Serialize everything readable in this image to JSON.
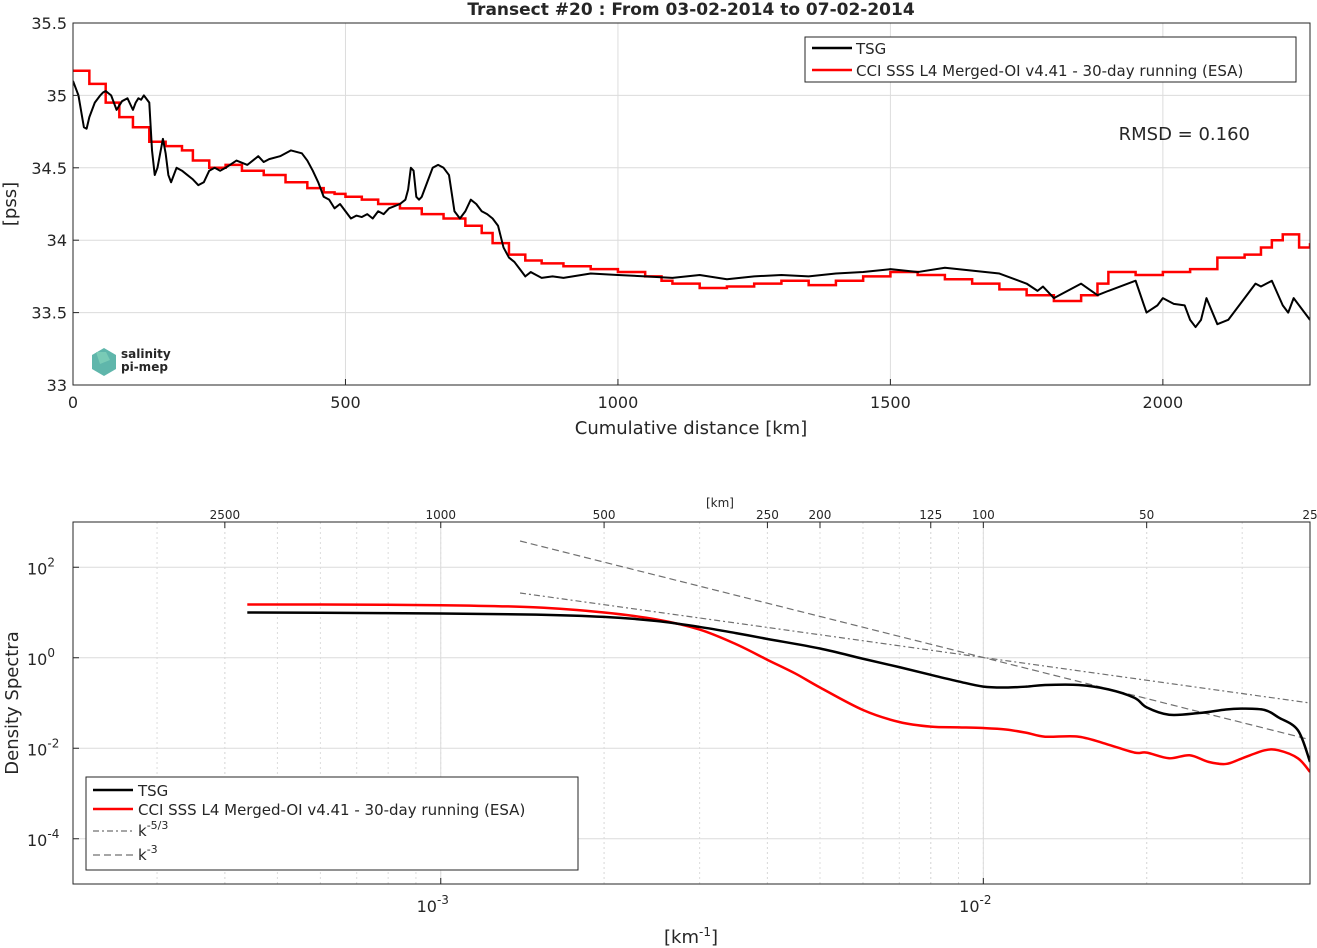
{
  "colors": {
    "tsg": "#000000",
    "cci": "#ff0000",
    "guide": "#707070",
    "grid": "#dcdcdc",
    "logo": "#2a9d8f"
  },
  "logo": {
    "line1": "salinity",
    "line2": "pi-mep"
  },
  "chart_data": [
    {
      "type": "line",
      "title": "Transect #20 : From 03-02-2014 to 07-02-2014",
      "xlabel": "Cumulative distance [km]",
      "ylabel": "[pss]",
      "xlim": [
        0,
        2270
      ],
      "ylim": [
        33,
        35.5
      ],
      "xticks": [
        0,
        500,
        1000,
        1500,
        2000
      ],
      "yticks": [
        33,
        33.5,
        34,
        34.5,
        35,
        35.5
      ],
      "grid": true,
      "legend_placement": "top-right",
      "annotation": "RMSD = 0.160",
      "series": [
        {
          "name": "TSG",
          "x": [
            0,
            10,
            20,
            25,
            30,
            40,
            50,
            55,
            60,
            70,
            80,
            90,
            100,
            110,
            115,
            120,
            125,
            130,
            140,
            145,
            150,
            155,
            160,
            165,
            170,
            175,
            180,
            190,
            200,
            210,
            220,
            230,
            240,
            250,
            260,
            270,
            280,
            300,
            320,
            340,
            350,
            360,
            380,
            400,
            420,
            430,
            440,
            450,
            460,
            470,
            480,
            490,
            500,
            510,
            520,
            530,
            540,
            550,
            560,
            570,
            580,
            600,
            610,
            615,
            620,
            625,
            630,
            635,
            640,
            650,
            660,
            670,
            680,
            690,
            700,
            710,
            720,
            730,
            740,
            750,
            760,
            770,
            780,
            790,
            800,
            810,
            820,
            830,
            840,
            850,
            860,
            880,
            900,
            950,
            1000,
            1050,
            1100,
            1150,
            1200,
            1250,
            1300,
            1350,
            1400,
            1450,
            1500,
            1550,
            1600,
            1650,
            1700,
            1750,
            1770,
            1780,
            1800,
            1850,
            1880,
            1900,
            1950,
            1970,
            1990,
            2000,
            2020,
            2040,
            2050,
            2060,
            2070,
            2080,
            2100,
            2120,
            2150,
            2170,
            2180,
            2190,
            2200,
            2220,
            2230,
            2240,
            2250,
            2260,
            2270
          ],
          "values": [
            35.1,
            35.0,
            34.78,
            34.77,
            34.85,
            34.95,
            35.0,
            35.02,
            35.03,
            35.0,
            34.9,
            34.96,
            34.98,
            34.9,
            34.95,
            34.98,
            34.97,
            35.0,
            34.95,
            34.62,
            34.45,
            34.5,
            34.6,
            34.7,
            34.6,
            34.45,
            34.4,
            34.5,
            34.48,
            34.45,
            34.42,
            34.38,
            34.4,
            34.48,
            34.5,
            34.48,
            34.5,
            34.55,
            34.52,
            34.58,
            34.54,
            34.56,
            34.58,
            34.62,
            34.6,
            34.55,
            34.48,
            34.4,
            34.3,
            34.28,
            34.22,
            34.25,
            34.2,
            34.15,
            34.17,
            34.16,
            34.18,
            34.15,
            34.2,
            34.18,
            34.22,
            34.25,
            34.28,
            34.35,
            34.5,
            34.48,
            34.3,
            34.28,
            34.3,
            34.4,
            34.5,
            34.52,
            34.5,
            34.45,
            34.2,
            34.15,
            34.2,
            34.28,
            34.25,
            34.2,
            34.18,
            34.15,
            34.1,
            33.95,
            33.88,
            33.85,
            33.8,
            33.75,
            33.78,
            33.76,
            33.74,
            33.75,
            33.74,
            33.77,
            33.76,
            33.75,
            33.74,
            33.76,
            33.73,
            33.75,
            33.76,
            33.75,
            33.77,
            33.78,
            33.8,
            33.78,
            33.81,
            33.79,
            33.77,
            33.7,
            33.65,
            33.68,
            33.6,
            33.7,
            33.62,
            33.65,
            33.72,
            33.5,
            33.55,
            33.6,
            33.56,
            33.55,
            33.45,
            33.4,
            33.45,
            33.6,
            33.42,
            33.45,
            33.6,
            33.7,
            33.68,
            33.7,
            33.72,
            33.55,
            33.5,
            33.6,
            33.55,
            33.5,
            33.45
          ]
        },
        {
          "name": "CCI SSS L4 Merged-OI v4.41 - 30-day running (ESA)",
          "step": true,
          "x": [
            0,
            30,
            60,
            85,
            110,
            140,
            170,
            200,
            220,
            250,
            280,
            310,
            350,
            390,
            430,
            460,
            480,
            500,
            530,
            560,
            600,
            640,
            680,
            720,
            750,
            770,
            800,
            830,
            860,
            900,
            950,
            1000,
            1050,
            1080,
            1100,
            1150,
            1200,
            1250,
            1300,
            1350,
            1400,
            1450,
            1500,
            1550,
            1600,
            1650,
            1700,
            1750,
            1800,
            1850,
            1880,
            1900,
            1950,
            2000,
            2050,
            2100,
            2150,
            2180,
            2200,
            2220,
            2250,
            2270
          ],
          "values": [
            35.17,
            35.08,
            34.95,
            34.85,
            34.78,
            34.68,
            34.65,
            34.62,
            34.55,
            34.5,
            34.52,
            34.48,
            34.45,
            34.4,
            34.36,
            34.33,
            34.32,
            34.3,
            34.28,
            34.25,
            34.22,
            34.18,
            34.15,
            34.1,
            34.05,
            33.98,
            33.9,
            33.86,
            33.84,
            33.82,
            33.8,
            33.78,
            33.75,
            33.72,
            33.7,
            33.67,
            33.68,
            33.7,
            33.72,
            33.69,
            33.72,
            33.75,
            33.78,
            33.76,
            33.73,
            33.7,
            33.66,
            33.62,
            33.58,
            33.62,
            33.7,
            33.78,
            33.76,
            33.78,
            33.8,
            33.88,
            33.9,
            33.95,
            34.0,
            34.04,
            33.95,
            33.98
          ]
        }
      ]
    },
    {
      "type": "line",
      "title": "",
      "xlabel": "[km",
      "xlabel_sup": "-1",
      "xlabel_end": "]",
      "ylabel": "Density Spectra",
      "top_axis_label": "[km]",
      "xscale": "log",
      "yscale": "log",
      "xlim": [
        0.00021,
        0.04
      ],
      "ylim": [
        1e-05,
        1000
      ],
      "xticks_base": "10",
      "xticks": [
        {
          "value": 0.001,
          "exp": "-3"
        },
        {
          "value": 0.01,
          "exp": "-2"
        }
      ],
      "yticks": [
        {
          "value": 0.0001,
          "exp": "-4"
        },
        {
          "value": 0.01,
          "exp": "-2"
        },
        {
          "value": 1,
          "exp": "0"
        },
        {
          "value": 100,
          "exp": "2"
        }
      ],
      "top_ticks": [
        "2500",
        "1000",
        "500",
        "250",
        "200",
        "125",
        "100",
        "50",
        "25"
      ],
      "top_tick_values_km": [
        2500,
        1000,
        500,
        250,
        200,
        125,
        100,
        50,
        25
      ],
      "grid": true,
      "legend_placement": "bottom-left",
      "series": [
        {
          "name": "TSG",
          "x": [
            0.00044,
            0.0006,
            0.001,
            0.0015,
            0.002,
            0.0025,
            0.003,
            0.0035,
            0.004,
            0.005,
            0.006,
            0.007,
            0.008,
            0.009,
            0.01,
            0.011,
            0.012,
            0.013,
            0.015,
            0.017,
            0.019,
            0.02,
            0.022,
            0.025,
            0.028,
            0.03,
            0.033,
            0.035,
            0.038,
            0.04
          ],
          "values": [
            10,
            9.9,
            9.5,
            9.0,
            8.0,
            6.5,
            4.8,
            3.5,
            2.6,
            1.6,
            0.95,
            0.62,
            0.42,
            0.3,
            0.23,
            0.22,
            0.23,
            0.25,
            0.25,
            0.2,
            0.13,
            0.08,
            0.055,
            0.06,
            0.072,
            0.075,
            0.07,
            0.048,
            0.025,
            0.005
          ]
        },
        {
          "name": "CCI SSS L4 Merged-OI v4.41 - 30-day running (ESA)",
          "x": [
            0.00044,
            0.0006,
            0.001,
            0.0015,
            0.002,
            0.0025,
            0.003,
            0.0035,
            0.004,
            0.0045,
            0.005,
            0.006,
            0.007,
            0.008,
            0.009,
            0.01,
            0.011,
            0.012,
            0.013,
            0.015,
            0.017,
            0.019,
            0.02,
            0.022,
            0.024,
            0.026,
            0.028,
            0.03,
            0.033,
            0.035,
            0.038,
            0.04
          ],
          "values": [
            15,
            15,
            14.5,
            13,
            10,
            7,
            4.2,
            2.0,
            0.9,
            0.45,
            0.22,
            0.07,
            0.038,
            0.03,
            0.029,
            0.028,
            0.026,
            0.022,
            0.018,
            0.018,
            0.012,
            0.008,
            0.008,
            0.006,
            0.007,
            0.005,
            0.0045,
            0.006,
            0.009,
            0.009,
            0.006,
            0.003
          ]
        },
        {
          "name": "k",
          "name_sup": "-5/3",
          "guide": "dashdot",
          "x": [
            0.0014,
            0.04
          ],
          "values": [
            27,
            0.1
          ]
        },
        {
          "name": "k",
          "name_sup": "-3",
          "guide": "dashed",
          "x": [
            0.0014,
            0.04
          ],
          "values": [
            380,
            0.0155
          ]
        }
      ]
    }
  ]
}
